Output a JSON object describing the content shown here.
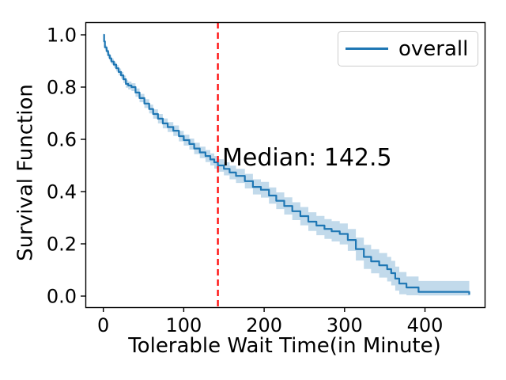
{
  "chart_data": {
    "type": "line",
    "subtype": "kaplan-meier-survival-step",
    "title": "",
    "xlabel": "Tolerable Wait Time(in Minute)",
    "ylabel": "Survival Function",
    "xlim": [
      -22.3,
      474.2
    ],
    "ylim": [
      -0.0424,
      1.0485
    ],
    "grid": false,
    "xticks": {
      "values": [
        0,
        100,
        200,
        300,
        400
      ],
      "labels": [
        "0",
        "100",
        "200",
        "300",
        "400"
      ]
    },
    "yticks": {
      "values": [
        0.0,
        0.2,
        0.4,
        0.6,
        0.8,
        1.0
      ],
      "labels": [
        "0.0",
        "0.2",
        "0.4",
        "0.6",
        "0.8",
        "1.0"
      ]
    },
    "legend": {
      "position": "upper-right",
      "entries": [
        {
          "label": "overall",
          "color": "#1f77b4"
        }
      ]
    },
    "median_line": {
      "x": 142.5,
      "color": "#ff0000",
      "linestyle": "dashed"
    },
    "annotation": {
      "text": "Median: 142.5",
      "x_data": 147,
      "y_data": 0.52
    },
    "series": [
      {
        "name": "overall",
        "color": "#1f77b4",
        "drawstyle": "steps-post",
        "x": [
          0,
          1,
          2,
          4,
          6,
          8,
          10,
          13,
          16,
          19,
          22,
          25,
          28,
          31,
          35,
          40,
          45,
          51,
          57,
          62,
          68,
          74,
          80,
          87,
          94,
          100,
          107,
          113,
          120,
          127,
          133,
          138,
          142.5,
          150,
          157,
          165,
          176,
          186,
          196,
          206,
          215,
          225,
          235,
          245,
          255,
          265,
          275,
          284,
          294,
          304,
          314,
          324,
          333,
          343,
          353,
          358,
          363,
          368,
          377,
          392,
          455
        ],
        "y": [
          1.0,
          0.975,
          0.952,
          0.938,
          0.922,
          0.91,
          0.898,
          0.886,
          0.872,
          0.858,
          0.845,
          0.83,
          0.812,
          0.806,
          0.8,
          0.779,
          0.758,
          0.737,
          0.716,
          0.697,
          0.679,
          0.661,
          0.647,
          0.633,
          0.612,
          0.597,
          0.582,
          0.565,
          0.55,
          0.536,
          0.523,
          0.512,
          0.5,
          0.487,
          0.473,
          0.46,
          0.44,
          0.418,
          0.407,
          0.385,
          0.365,
          0.345,
          0.325,
          0.306,
          0.285,
          0.27,
          0.257,
          0.248,
          0.238,
          0.215,
          0.18,
          0.15,
          0.133,
          0.118,
          0.103,
          0.088,
          0.067,
          0.048,
          0.033,
          0.016,
          0.005
        ],
        "ci_lower": [
          0.997,
          0.969,
          0.944,
          0.929,
          0.912,
          0.899,
          0.887,
          0.874,
          0.86,
          0.845,
          0.832,
          0.816,
          0.798,
          0.791,
          0.785,
          0.763,
          0.742,
          0.72,
          0.699,
          0.679,
          0.661,
          0.642,
          0.628,
          0.613,
          0.592,
          0.576,
          0.561,
          0.543,
          0.528,
          0.513,
          0.5,
          0.488,
          0.476,
          0.462,
          0.447,
          0.433,
          0.412,
          0.389,
          0.377,
          0.354,
          0.333,
          0.312,
          0.291,
          0.271,
          0.249,
          0.233,
          0.219,
          0.209,
          0.198,
          0.173,
          0.136,
          0.104,
          0.087,
          0.071,
          0.056,
          0.041,
          0.021,
          0.007,
          0.003,
          0.002,
          0.001
        ],
        "ci_upper": [
          1.0,
          0.981,
          0.96,
          0.947,
          0.932,
          0.921,
          0.909,
          0.898,
          0.884,
          0.871,
          0.858,
          0.844,
          0.826,
          0.821,
          0.815,
          0.795,
          0.774,
          0.754,
          0.733,
          0.715,
          0.697,
          0.68,
          0.666,
          0.653,
          0.632,
          0.618,
          0.603,
          0.587,
          0.572,
          0.559,
          0.546,
          0.536,
          0.524,
          0.512,
          0.499,
          0.487,
          0.468,
          0.447,
          0.437,
          0.416,
          0.397,
          0.378,
          0.359,
          0.341,
          0.321,
          0.307,
          0.295,
          0.287,
          0.278,
          0.257,
          0.224,
          0.196,
          0.179,
          0.165,
          0.15,
          0.135,
          0.113,
          0.092,
          0.075,
          0.058,
          0.043
        ],
        "ci_color": "#1f77b4",
        "ci_alpha": 0.27
      }
    ],
    "colors": {
      "axis": "#000000",
      "text": "#000000",
      "legend_border": "#cccccc",
      "background": "#ffffff"
    }
  }
}
